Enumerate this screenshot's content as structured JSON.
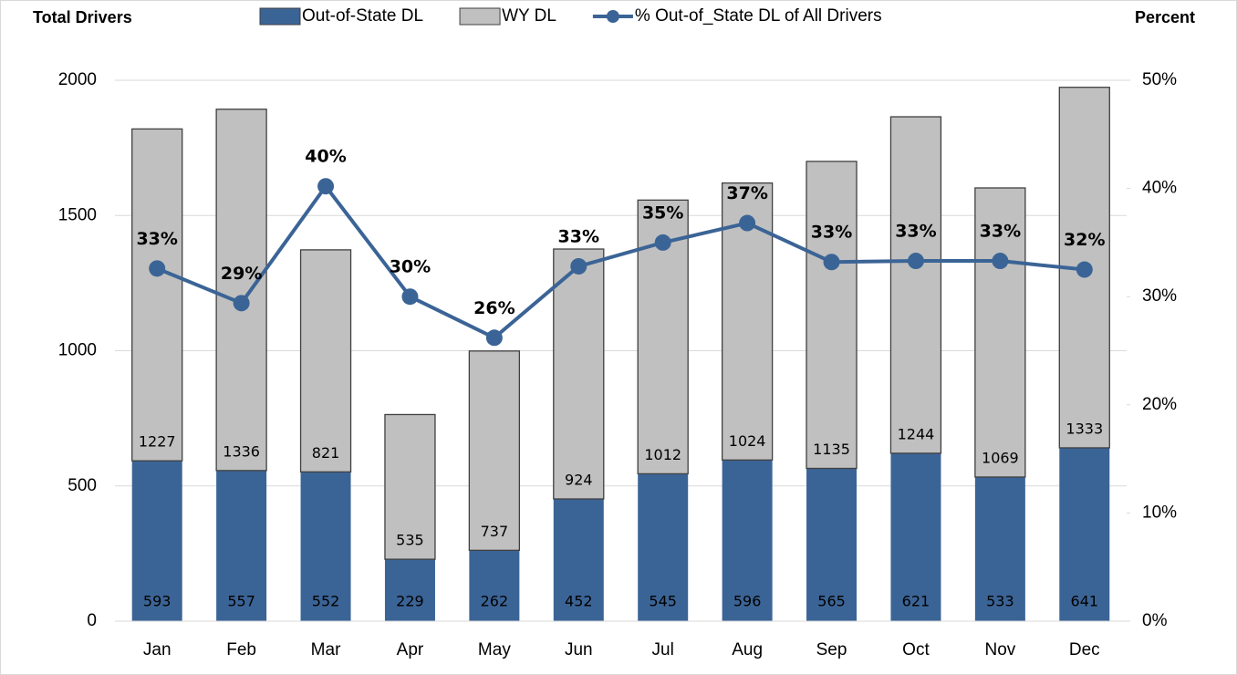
{
  "chart_data": {
    "type": "bar",
    "y_axis_title": "Total Drivers",
    "y2_axis_title": "Percent",
    "categories": [
      "Jan",
      "Feb",
      "Mar",
      "Apr",
      "May",
      "Jun",
      "Jul",
      "Aug",
      "Sep",
      "Oct",
      "Nov",
      "Dec"
    ],
    "stacked": true,
    "series": [
      {
        "name": "Out-of-State DL",
        "color": "#3b6496",
        "values": [
          593,
          557,
          552,
          229,
          262,
          452,
          545,
          596,
          565,
          621,
          533,
          641
        ]
      },
      {
        "name": "WY DL",
        "color": "#c0c0c0",
        "values": [
          1227,
          1336,
          821,
          535,
          737,
          924,
          1012,
          1024,
          1135,
          1244,
          1069,
          1333
        ]
      },
      {
        "name": "% Out-of_State DL of All Drivers",
        "type": "line",
        "axis": "y2",
        "color": "#3b6496",
        "values": [
          32.6,
          29.4,
          40.2,
          30.0,
          26.2,
          32.8,
          35.0,
          36.8,
          33.2,
          33.3,
          33.3,
          32.5
        ],
        "value_labels": [
          "33%",
          "29%",
          "40%",
          "30%",
          "26%",
          "33%",
          "35%",
          "37%",
          "33%",
          "33%",
          "33%",
          "32%"
        ]
      }
    ],
    "ylim": [
      0,
      2000
    ],
    "yticks": [
      0,
      500,
      1000,
      1500,
      2000
    ],
    "y2lim": [
      0,
      50
    ],
    "y2ticks": [
      {
        "value": 0,
        "label": "0%"
      },
      {
        "value": 10,
        "label": "10%"
      },
      {
        "value": 20,
        "label": "20%"
      },
      {
        "value": 30,
        "label": "30%"
      },
      {
        "value": 40,
        "label": "40%"
      },
      {
        "value": 50,
        "label": "50%"
      }
    ],
    "grid": true,
    "legend": "top"
  }
}
